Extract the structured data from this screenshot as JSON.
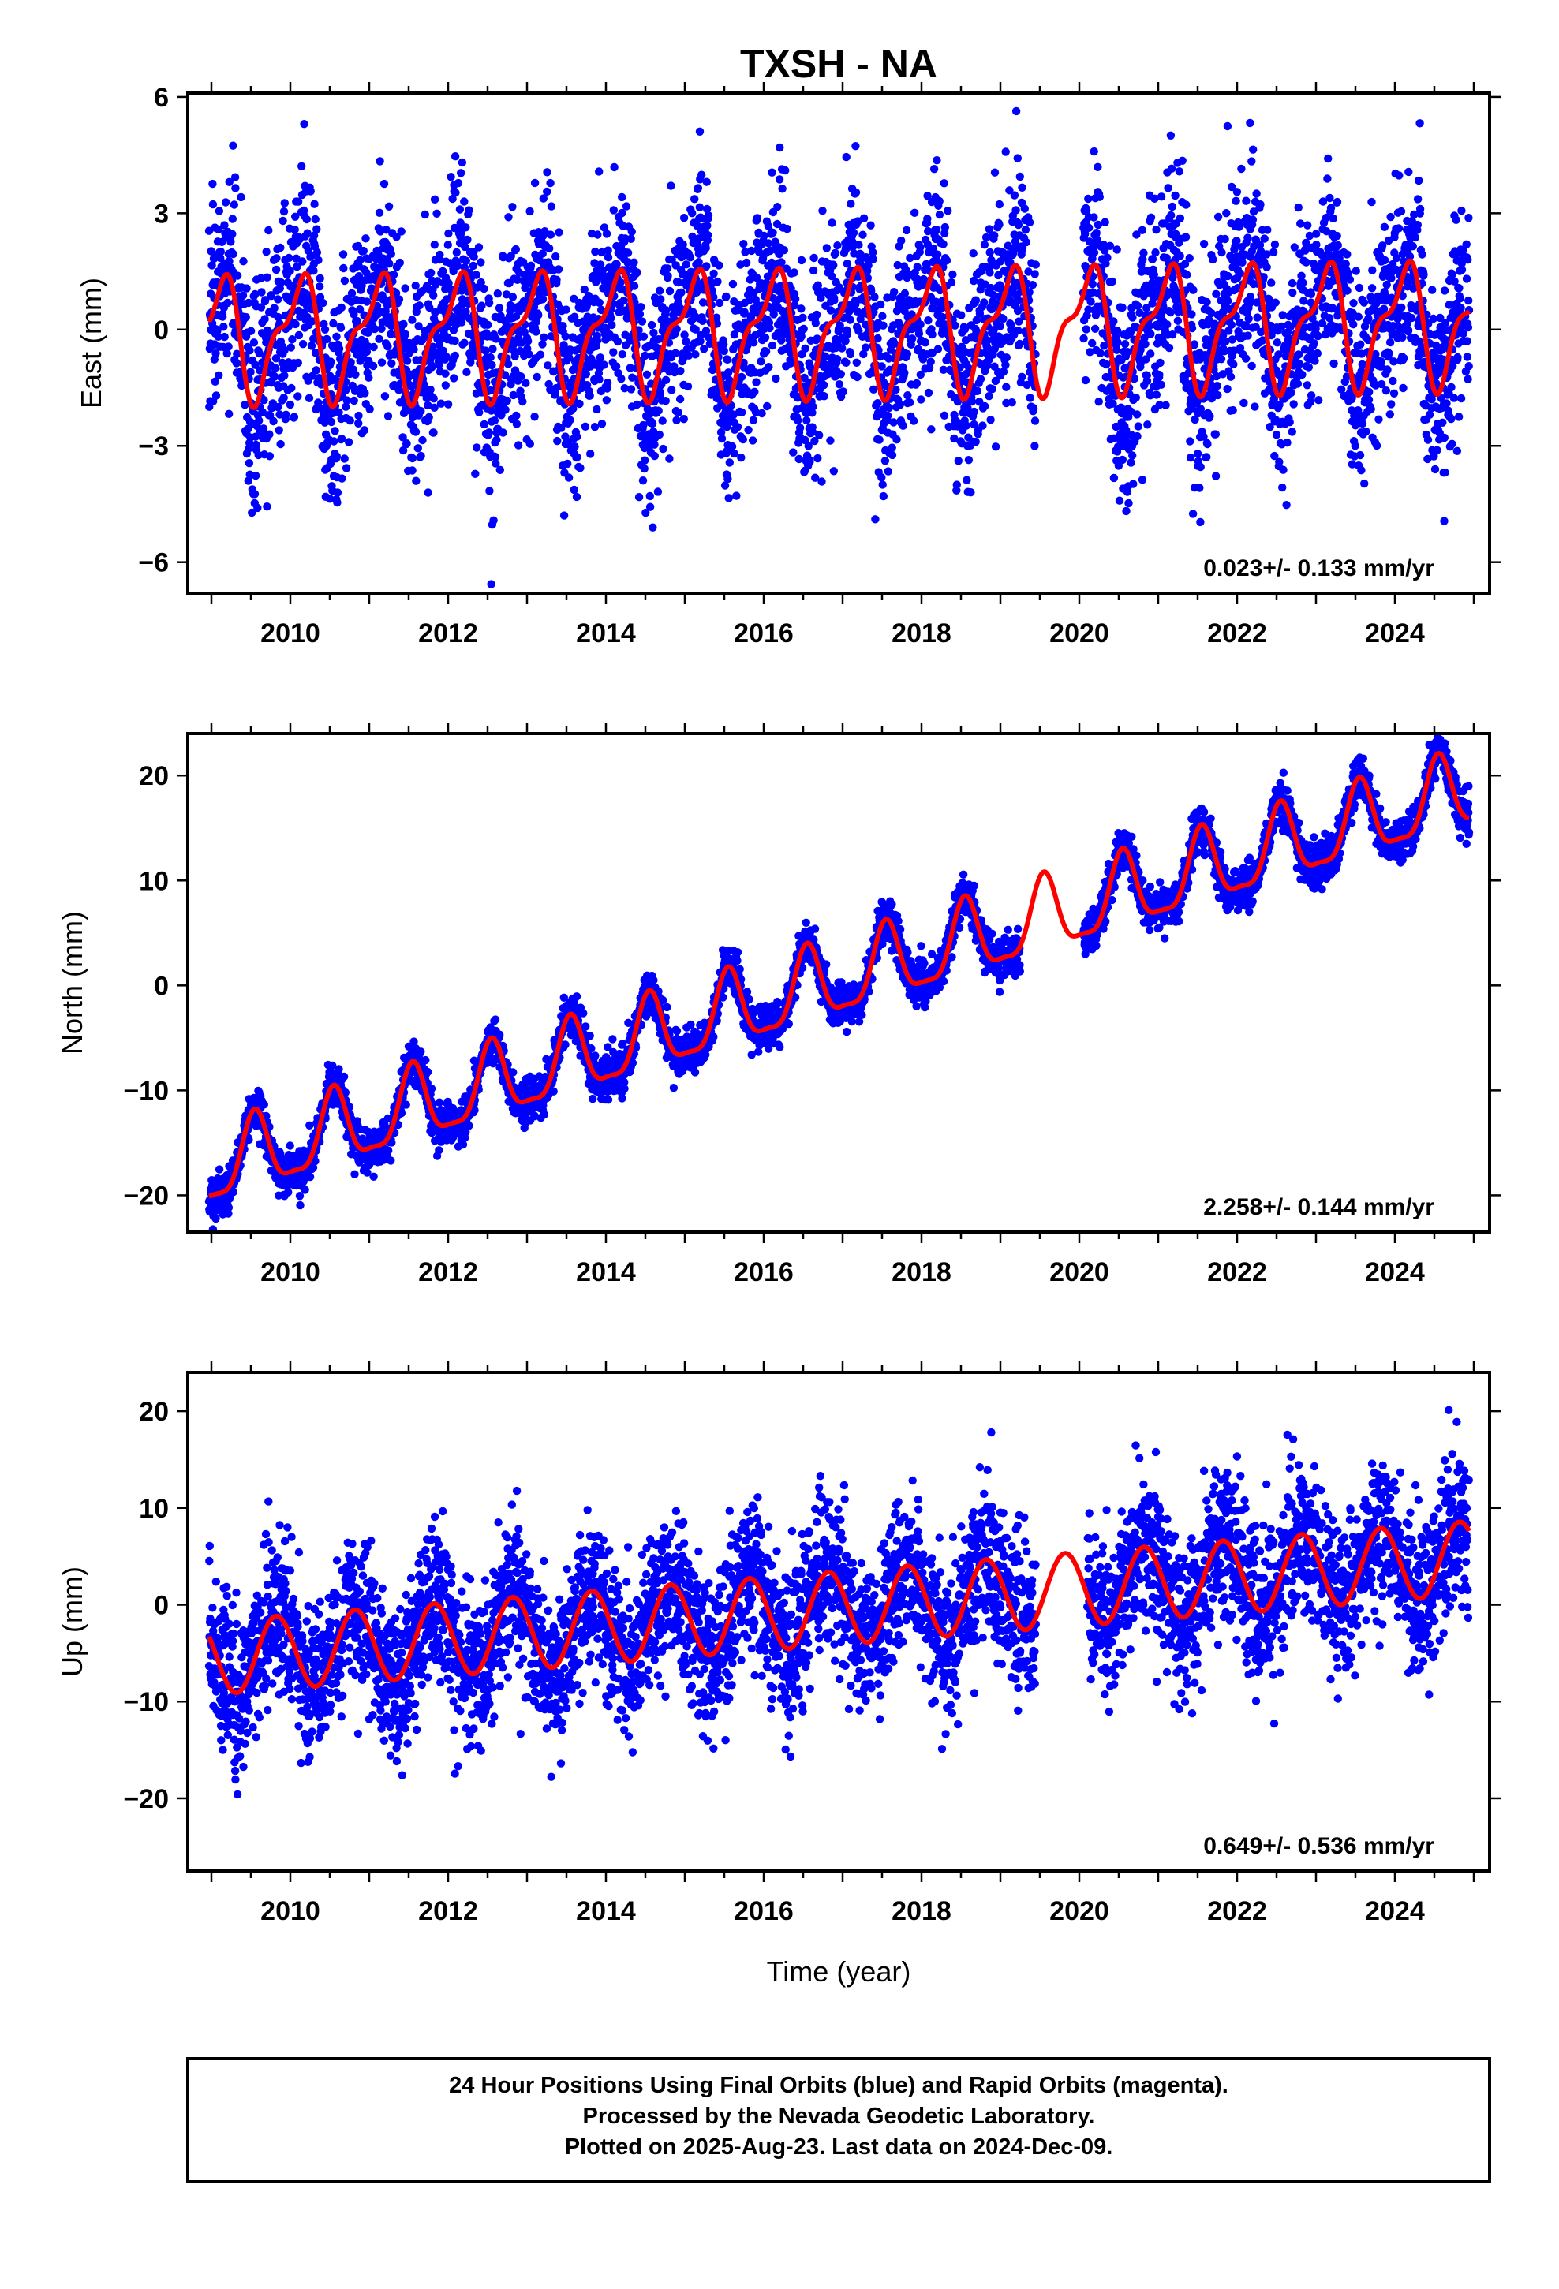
{
  "title": "TXSH - NA",
  "xlabel": "Time (year)",
  "caption": {
    "lines": [
      "24 Hour Positions Using Final Orbits (blue) and Rapid Orbits (magenta).",
      "Processed by the Nevada Geodetic Laboratory.",
      "Plotted on 2025-Aug-23. Last data on 2024-Dec-09."
    ]
  },
  "colors": {
    "data": "#0000ff",
    "model": "#ff0000",
    "frame": "#000000"
  },
  "chart_data": [
    {
      "type": "scatter",
      "ylabel": "East (mm)",
      "rate_label": "0.023+/- 0.133 mm/yr",
      "xlim": [
        2008.7,
        2025.2
      ],
      "ylim": [
        -6.8,
        6.1
      ],
      "xticks": [
        2010,
        2012,
        2014,
        2016,
        2018,
        2020,
        2022,
        2024
      ],
      "xtick_labels": [
        "2010",
        "2012",
        "2014",
        "2016",
        "2018",
        "2020",
        "2022",
        "2024"
      ],
      "yticks": [
        -6,
        -3,
        0,
        3,
        6
      ],
      "ytick_labels": [
        "−6",
        "−3",
        "0",
        "3",
        "6"
      ],
      "data_range": [
        2008.97,
        2024.94
      ],
      "gap": [
        2019.45,
        2020.05
      ],
      "trend": {
        "intercept_2009": -0.2,
        "rate": 0.023
      },
      "annual": {
        "amplitude": 1.4,
        "peak_phase": 0.1
      },
      "semiannual": {
        "amplitude": 0.6,
        "peak_phase": 0.25
      },
      "scatter_sd": 1.3,
      "series": [
        {
          "name": "Final Orbits (blue)",
          "values": []
        },
        {
          "name": "Model",
          "values": []
        }
      ]
    },
    {
      "type": "scatter",
      "ylabel": "North (mm)",
      "rate_label": "2.258+/- 0.144 mm/yr",
      "xlim": [
        2008.7,
        2025.2
      ],
      "ylim": [
        -23.5,
        24.0
      ],
      "xticks": [
        2010,
        2012,
        2014,
        2016,
        2018,
        2020,
        2022,
        2024
      ],
      "xtick_labels": [
        "2010",
        "2012",
        "2014",
        "2016",
        "2018",
        "2020",
        "2022",
        "2024"
      ],
      "yticks": [
        -20,
        -10,
        0,
        10,
        20
      ],
      "ytick_labels": [
        "−20",
        "−10",
        "0",
        "10",
        "20"
      ],
      "data_range": [
        2008.97,
        2024.94
      ],
      "gap": [
        2019.25,
        2020.05
      ],
      "trend": {
        "intercept_2009": -17.5,
        "rate": 2.258
      },
      "annual": {
        "amplitude": 3.5,
        "peak_phase": 0.55
      },
      "semiannual": {
        "amplitude": 1.0,
        "peak_phase": 0.55
      },
      "scatter_sd": 1.0,
      "series": [
        {
          "name": "Final Orbits (blue)",
          "values": []
        },
        {
          "name": "Model",
          "values": []
        }
      ]
    },
    {
      "type": "scatter",
      "ylabel": "Up (mm)",
      "rate_label": "0.649+/- 0.536 mm/yr",
      "xlim": [
        2008.7,
        2025.2
      ],
      "ylim": [
        -27.5,
        24.0
      ],
      "xticks": [
        2010,
        2012,
        2014,
        2016,
        2018,
        2020,
        2022,
        2024
      ],
      "xtick_labels": [
        "2010",
        "2012",
        "2014",
        "2016",
        "2018",
        "2020",
        "2022",
        "2024"
      ],
      "yticks": [
        -20,
        -10,
        0,
        10,
        20
      ],
      "ytick_labels": [
        "−20",
        "−10",
        "0",
        "10",
        "20"
      ],
      "data_range": [
        2008.97,
        2024.94
      ],
      "gap": [
        2019.45,
        2020.1
      ],
      "trend": {
        "intercept_2009": -5.5,
        "rate": 0.649
      },
      "annual": {
        "amplitude": 3.8,
        "peak_phase": 0.82
      },
      "semiannual": {
        "amplitude": 0.0,
        "peak_phase": 0.0
      },
      "scatter_sd": 4.0,
      "series": [
        {
          "name": "Final Orbits (blue)",
          "values": []
        },
        {
          "name": "Model",
          "values": []
        }
      ]
    }
  ]
}
